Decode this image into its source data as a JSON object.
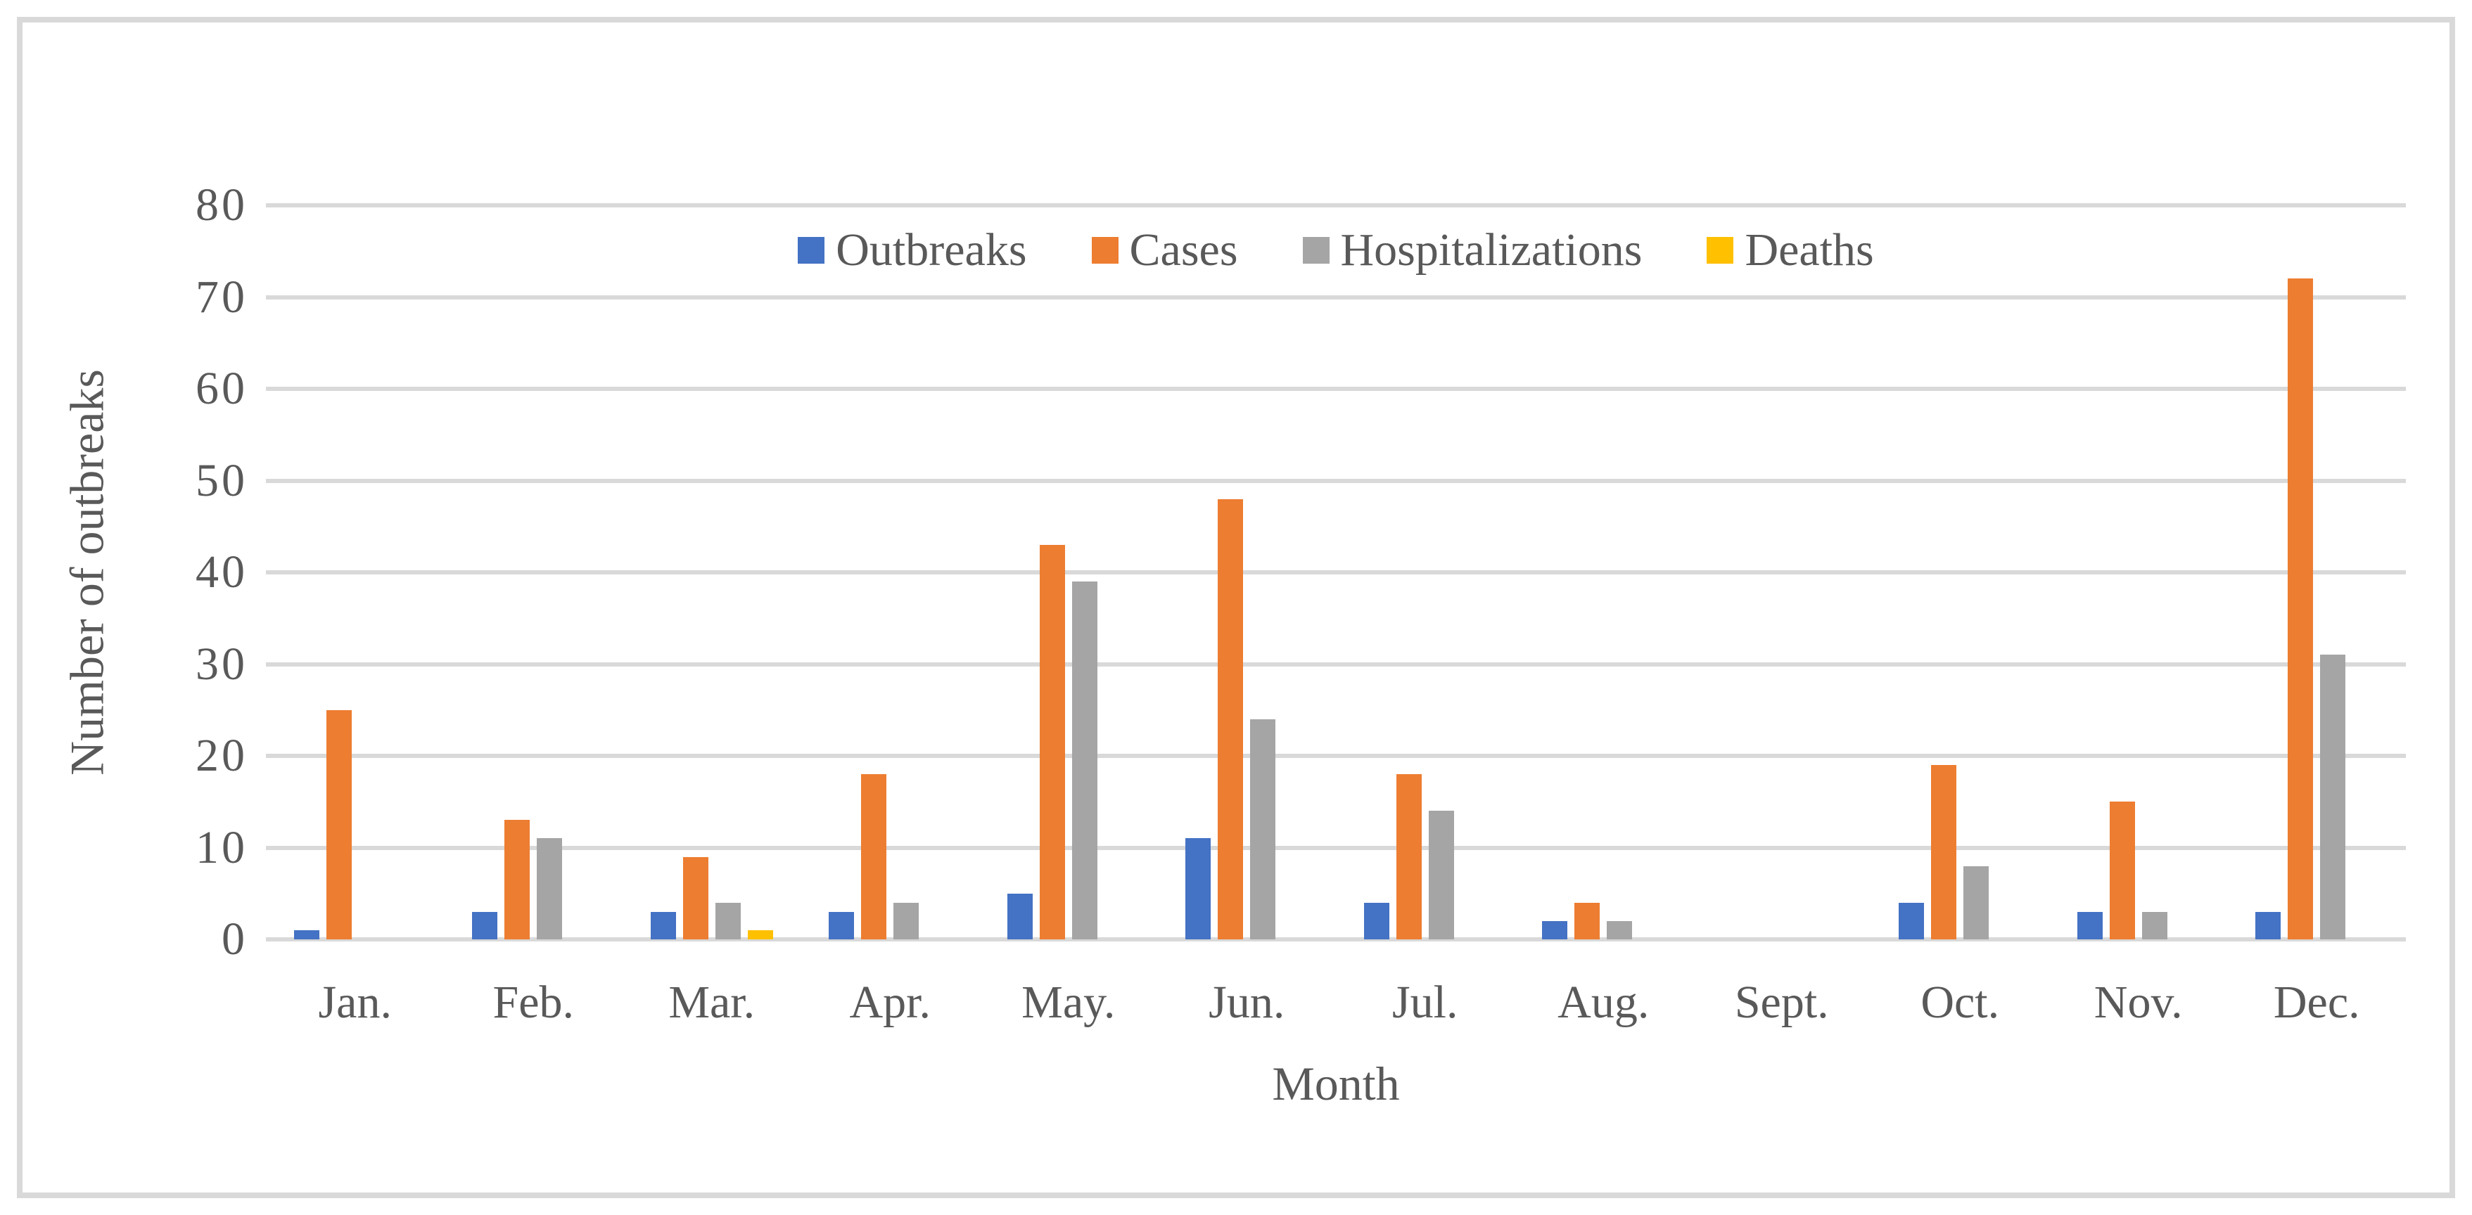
{
  "chart_data": {
    "type": "bar",
    "title": "",
    "categories": [
      "Jan.",
      "Feb.",
      "Mar.",
      "Apr.",
      "May.",
      "Jun.",
      "Jul.",
      "Aug.",
      "Sept.",
      "Oct.",
      "Nov.",
      "Dec."
    ],
    "series": [
      {
        "name": "Outbreaks",
        "color": "#4472C4",
        "values": [
          1,
          3,
          3,
          3,
          5,
          11,
          4,
          2,
          0,
          4,
          3,
          3
        ]
      },
      {
        "name": "Cases",
        "color": "#ED7D31",
        "values": [
          25,
          13,
          9,
          18,
          43,
          48,
          18,
          4,
          0,
          19,
          15,
          72
        ]
      },
      {
        "name": "Hospitalizations",
        "color": "#A5A5A5",
        "values": [
          0,
          11,
          4,
          4,
          39,
          24,
          14,
          2,
          0,
          8,
          3,
          31
        ]
      },
      {
        "name": "Deaths",
        "color": "#FFC000",
        "values": [
          0,
          0,
          1,
          0,
          0,
          0,
          0,
          0,
          0,
          0,
          0,
          0
        ]
      }
    ],
    "xlabel": "Month",
    "ylabel": "Number of outbreaks",
    "ylim": [
      0,
      80
    ],
    "yticks": [
      0,
      10,
      20,
      30,
      40,
      50,
      60,
      70,
      80
    ],
    "grid": true,
    "legend_position": "top-center-inside"
  },
  "colors": {
    "background": "#FFFFFF",
    "frame_border": "#D9D9D9",
    "gridline": "#D9D9D9",
    "axis_text": "#595959"
  }
}
